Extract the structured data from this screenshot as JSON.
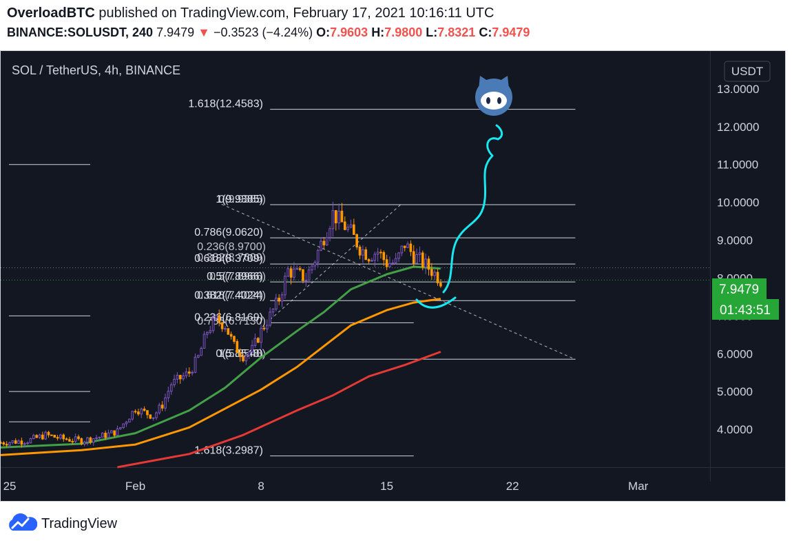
{
  "header": {
    "publisher": "OverloadBTC",
    "published_text": "published on TradingView.com, February 17, 2021 10:16:11 UTC",
    "symbol": "BINANCE:SOLUSDT, 240",
    "last": "7.9479",
    "change_arrow": "▼",
    "change": "−0.3523 (−4.24%)",
    "o_label": "O:",
    "o_value": "7.9603",
    "h_label": "H:",
    "h_value": "7.9800",
    "l_label": "L:",
    "l_value": "7.8321",
    "c_label": "C:",
    "c_value": "7.9479"
  },
  "chart": {
    "legend": "SOL / TetherUS, 4h, BINANCE",
    "currency_label": "USDT",
    "price_tag": "7.9479",
    "countdown_tag": "01:43:51",
    "colors": {
      "background": "#131722",
      "up": "#7e57c2",
      "down": "#ff9800",
      "ma_short": "#43a047",
      "ma_mid": "#ff9800",
      "ma_long": "#e53935",
      "drawing": "#18e8f0",
      "tag": "#26a637"
    },
    "icons": [
      "github-octocat-icon",
      "tradingview-cloud-logo-icon"
    ]
  },
  "chart_data": {
    "type": "candlestick",
    "title": "SOL / TetherUS, 4h, BINANCE",
    "ylim": [
      3.0,
      14.0
    ],
    "y_ticks": [
      "4.0000",
      "5.0000",
      "6.0000",
      "7.0000",
      "8.0000",
      "9.0000",
      "10.0000",
      "11.0000",
      "12.0000",
      "13.0000"
    ],
    "y_ticks_values": [
      4,
      5,
      6,
      7,
      8,
      9,
      10,
      11,
      12,
      13
    ],
    "x_tick_labels": [
      "25",
      "Feb",
      "8",
      "15",
      "22",
      "Mar"
    ],
    "x_tick_days": [
      -7,
      0,
      7,
      14,
      21,
      28
    ],
    "x_range_days": [
      -7.5,
      32
    ],
    "candle_close_path": [
      [
        -7.5,
        3.65
      ],
      [
        -6,
        3.7
      ],
      [
        -5,
        3.85
      ],
      [
        -4,
        3.75
      ],
      [
        -3,
        3.7
      ],
      [
        -2,
        3.8
      ],
      [
        -1,
        3.95
      ],
      [
        0,
        4.55
      ],
      [
        1,
        4.35
      ],
      [
        1.5,
        4.65
      ],
      [
        2,
        5.2
      ],
      [
        2.5,
        5.35
      ],
      [
        3,
        5.5
      ],
      [
        3.5,
        5.9
      ],
      [
        4,
        6.6
      ],
      [
        4.5,
        6.9
      ],
      [
        5,
        6.75
      ],
      [
        5.5,
        6.2
      ],
      [
        6,
        5.95
      ],
      [
        6.5,
        6.1
      ],
      [
        7,
        6.6
      ],
      [
        7.5,
        7.0
      ],
      [
        8,
        7.45
      ],
      [
        8.5,
        8.2
      ],
      [
        9,
        8.1
      ],
      [
        9.5,
        8.0
      ],
      [
        10,
        8.5
      ],
      [
        10.5,
        9.1
      ],
      [
        11,
        9.7
      ],
      [
        11.5,
        9.45
      ],
      [
        12,
        9.2
      ],
      [
        12.5,
        8.8
      ],
      [
        13,
        8.6
      ],
      [
        13.5,
        8.7
      ],
      [
        14,
        8.4
      ],
      [
        14.5,
        8.4
      ],
      [
        15,
        8.9
      ],
      [
        15.5,
        8.6
      ],
      [
        16,
        8.4
      ],
      [
        16.5,
        8.2
      ],
      [
        17,
        7.95
      ]
    ],
    "fib_levels": [
      {
        "label": "1.618(12.4583)",
        "value": 12.4583
      },
      {
        "label": "1(9.9385)",
        "value": 9.9385
      },
      {
        "label": "0.786(9.0620)",
        "value": 9.062
      },
      {
        "label": "0.618(8.3709)",
        "value": 8.3709
      },
      {
        "label": "0.5(7.8966)",
        "value": 7.8966
      },
      {
        "label": "0.382(7.4024)",
        "value": 7.4024
      },
      {
        "label": "0.236(6.8169)",
        "value": 6.8169
      },
      {
        "label": "0(5.8548)",
        "value": 5.8548
      },
      {
        "label": "1.618(3.2987)",
        "value": 3.2987
      }
    ],
    "fib_overlapped_labels": [
      "0(9.9385)",
      "0.236(8.9700)",
      "0.382(8.7609)",
      "0.5(7.8966)",
      "0.618(7.4024)",
      "0.786(6.7130)",
      "1(5.8548)"
    ],
    "series": [
      {
        "values": [
          [
            -7.5,
            3.52
          ],
          [
            -3,
            3.62
          ],
          [
            0,
            3.9
          ],
          [
            3,
            4.5
          ],
          [
            5,
            5.1
          ],
          [
            7,
            5.9
          ],
          [
            9,
            6.6
          ],
          [
            10.5,
            7.1
          ],
          [
            12,
            7.7
          ],
          [
            14,
            8.1
          ],
          [
            15.5,
            8.3
          ],
          [
            17,
            8.25
          ]
        ]
      },
      {
        "values": [
          [
            -7.5,
            3.32
          ],
          [
            -3,
            3.45
          ],
          [
            0,
            3.6
          ],
          [
            3,
            4.05
          ],
          [
            5,
            4.55
          ],
          [
            7,
            5.05
          ],
          [
            9,
            5.65
          ],
          [
            10.5,
            6.2
          ],
          [
            12,
            6.75
          ],
          [
            14,
            7.15
          ],
          [
            15.5,
            7.35
          ],
          [
            17,
            7.45
          ]
        ]
      },
      {
        "values": [
          [
            -1,
            3.0
          ],
          [
            3,
            3.35
          ],
          [
            6,
            3.85
          ],
          [
            9,
            4.5
          ],
          [
            11,
            4.9
          ],
          [
            13,
            5.4
          ],
          [
            15,
            5.7
          ],
          [
            17,
            6.05
          ]
        ]
      }
    ],
    "last_value": 7.9479
  }
}
